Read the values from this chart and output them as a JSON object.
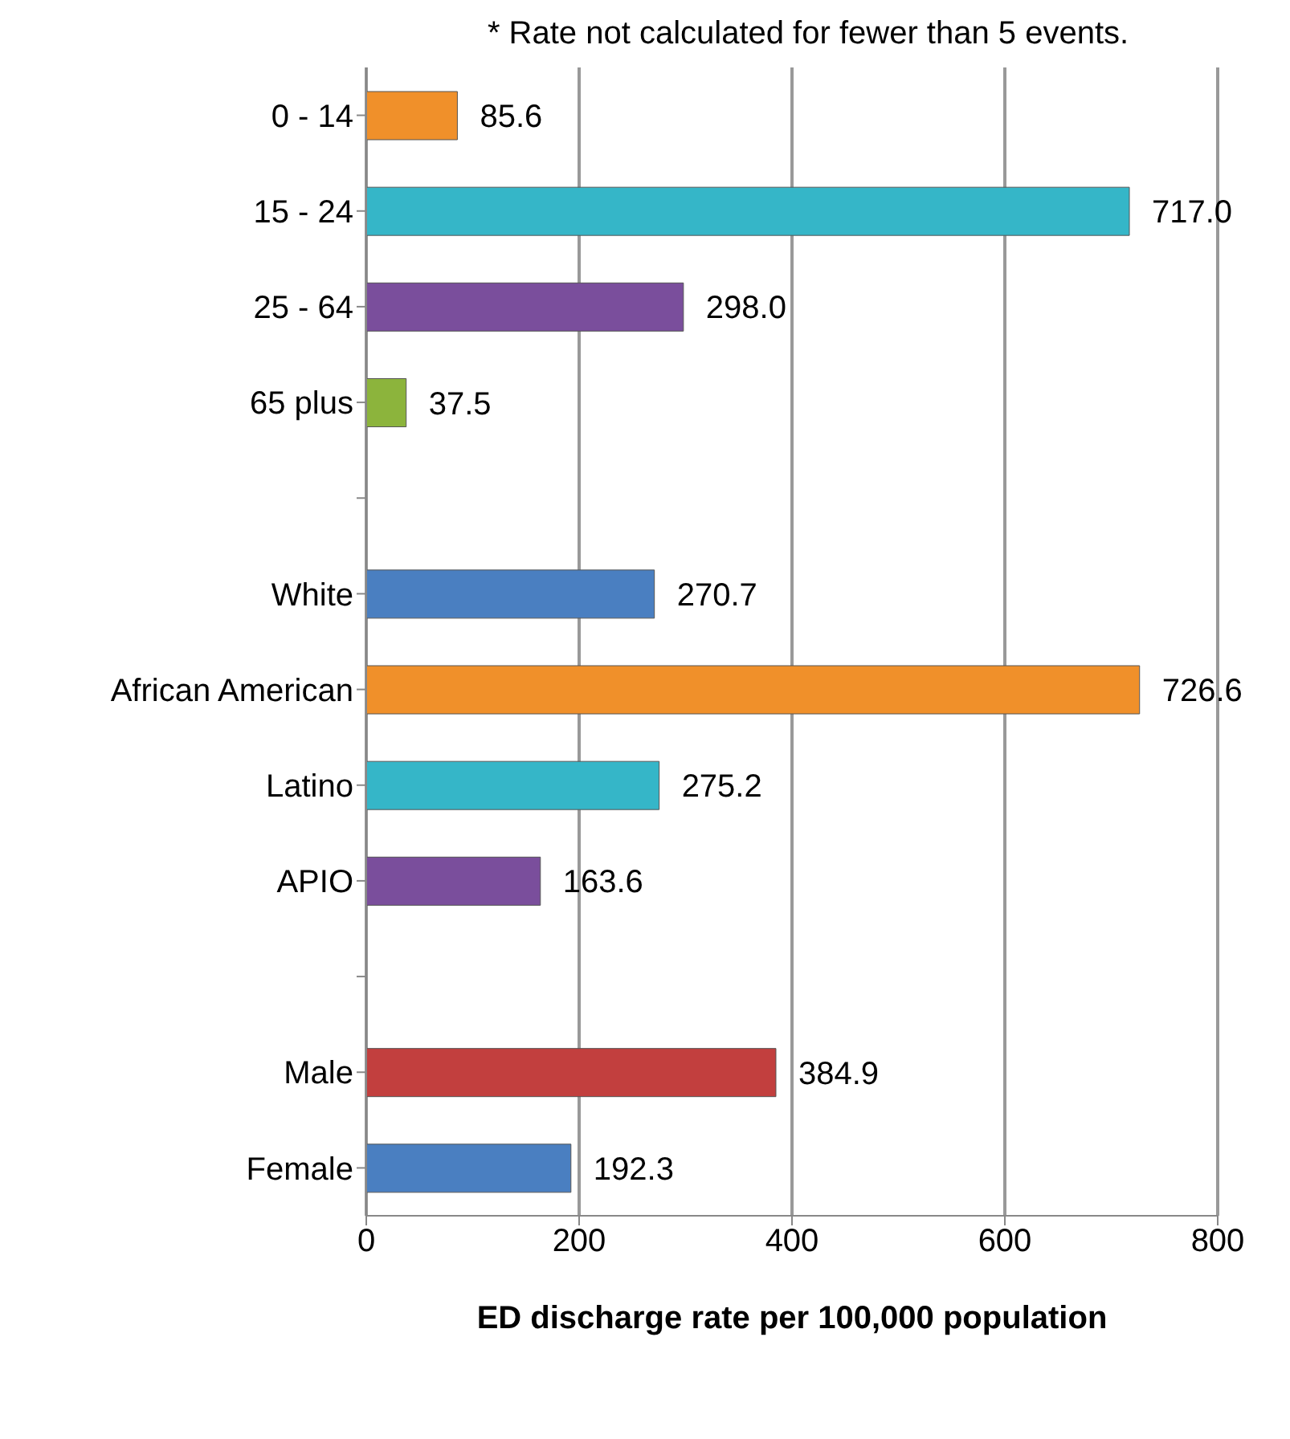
{
  "chart_data": {
    "type": "bar",
    "orientation": "horizontal",
    "xlabel": "ED discharge rate per 100,000 population",
    "annotations": [
      "* Rate not calculated for fewer than 5 events."
    ],
    "categories": [
      "0 - 14",
      "15 - 24",
      "25 - 64",
      "65 plus",
      null,
      "White",
      "African American",
      "Latino",
      "APIO",
      null,
      "Male",
      "Female"
    ],
    "values": [
      85.6,
      717.0,
      298.0,
      37.5,
      null,
      270.7,
      726.6,
      275.2,
      163.6,
      null,
      384.9,
      192.3
    ],
    "value_labels": [
      "85.6",
      "717.0",
      "298.0",
      "37.5",
      null,
      "270.7",
      "726.6",
      "275.2",
      "163.6",
      null,
      "384.9",
      "192.3"
    ],
    "colors": [
      "#f0902a",
      "#35b6c8",
      "#7a4e9c",
      "#8cb43c",
      "#ffffff",
      "#4a7fc1",
      "#f0902a",
      "#35b6c8",
      "#7a4e9c",
      "#ffffff",
      "#c23f3e",
      "#4a7fc1"
    ],
    "xlim": [
      0,
      800
    ],
    "xticks": [
      0,
      200,
      400,
      600,
      800
    ],
    "grid": "x"
  }
}
